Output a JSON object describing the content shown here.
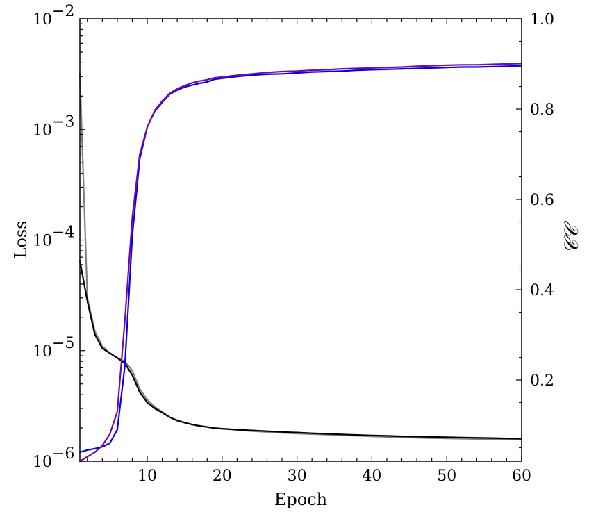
{
  "chart_data": {
    "type": "line",
    "xlabel": "Epoch",
    "ylabel_left": "Loss",
    "ylabel_right": "𝒞𝒞",
    "xlim": [
      1,
      60
    ],
    "ylim_left": [
      1e-06,
      0.01
    ],
    "yscale_left": "log",
    "ylim_right": [
      0.02,
      1.0
    ],
    "x_ticks": [
      10,
      20,
      30,
      40,
      50,
      60
    ],
    "x_tick_labels": [
      "10",
      "20",
      "30",
      "40",
      "50",
      "60"
    ],
    "y_left_ticks": [
      {
        "value": 1e-06,
        "base": "10",
        "exp": "−6"
      },
      {
        "value": 1e-05,
        "base": "10",
        "exp": "−5"
      },
      {
        "value": 0.0001,
        "base": "10",
        "exp": "−4"
      },
      {
        "value": 0.001,
        "base": "10",
        "exp": "−3"
      },
      {
        "value": 0.01,
        "base": "10",
        "exp": "−2"
      }
    ],
    "y_right_ticks": [
      0.2,
      0.4,
      0.6,
      0.8,
      1.0
    ],
    "y_right_tick_labels": [
      "0.2",
      "0.4",
      "0.6",
      "0.8",
      "1.0"
    ],
    "grid": false,
    "series": [
      {
        "axis": "left",
        "color": "#7f7f7f",
        "x": [
          1,
          2,
          3,
          4,
          5,
          6,
          7,
          8,
          9,
          10,
          11,
          12,
          13,
          14,
          15,
          16,
          17,
          18,
          19,
          20,
          22,
          24,
          26,
          28,
          30,
          32,
          34,
          36,
          38,
          40,
          42,
          44,
          46,
          48,
          50,
          52,
          54,
          56,
          58,
          60
        ],
        "y": [
          0.0032,
          3e-05,
          1.5e-05,
          1.1e-05,
          9.5e-06,
          8.6e-06,
          8e-06,
          6.6e-06,
          4.5e-06,
          3.6e-06,
          3.1e-06,
          2.8e-06,
          2.5e-06,
          2.35e-06,
          2.25e-06,
          2.15e-06,
          2.1e-06,
          2.05e-06,
          2e-06,
          1.97e-06,
          1.92e-06,
          1.87e-06,
          1.84e-06,
          1.81e-06,
          1.78e-06,
          1.76e-06,
          1.74e-06,
          1.72e-06,
          1.7e-06,
          1.68e-06,
          1.66e-06,
          1.65e-06,
          1.63e-06,
          1.62e-06,
          1.61e-06,
          1.6e-06,
          1.59e-06,
          1.58e-06,
          1.57e-06,
          1.57e-06
        ]
      },
      {
        "axis": "left",
        "color": "#000000",
        "x": [
          1,
          2,
          3,
          4,
          5,
          6,
          7,
          8,
          9,
          10,
          11,
          12,
          13,
          14,
          15,
          16,
          17,
          18,
          19,
          20,
          22,
          24,
          26,
          28,
          30,
          32,
          34,
          36,
          38,
          40,
          42,
          44,
          46,
          48,
          50,
          52,
          54,
          56,
          58,
          60
        ],
        "y": [
          6.5e-05,
          2.8e-05,
          1.4e-05,
          1.05e-05,
          9.5e-06,
          8.6e-06,
          7.7e-06,
          6e-06,
          4.2e-06,
          3.4e-06,
          3e-06,
          2.75e-06,
          2.5e-06,
          2.33e-06,
          2.23e-06,
          2.15e-06,
          2.08e-06,
          2.04e-06,
          1.99e-06,
          1.97e-06,
          1.93e-06,
          1.9e-06,
          1.87e-06,
          1.84e-06,
          1.82e-06,
          1.79e-06,
          1.77e-06,
          1.75e-06,
          1.73e-06,
          1.71e-06,
          1.7e-06,
          1.68e-06,
          1.67e-06,
          1.66e-06,
          1.65e-06,
          1.64e-06,
          1.63e-06,
          1.62e-06,
          1.61e-06,
          1.6e-06
        ]
      },
      {
        "axis": "right",
        "color": "#0000ee",
        "x": [
          1,
          2,
          3,
          4,
          5,
          6,
          7,
          8,
          9,
          10,
          11,
          12,
          13,
          14,
          15,
          16,
          17,
          18,
          19,
          20,
          22,
          24,
          26,
          28,
          30,
          32,
          34,
          36,
          38,
          40,
          42,
          44,
          46,
          48,
          50,
          52,
          54,
          56,
          58,
          60
        ],
        "y": [
          0.04,
          0.045,
          0.048,
          0.052,
          0.06,
          0.09,
          0.23,
          0.52,
          0.69,
          0.76,
          0.795,
          0.815,
          0.833,
          0.842,
          0.849,
          0.853,
          0.857,
          0.86,
          0.866,
          0.868,
          0.872,
          0.875,
          0.877,
          0.878,
          0.88,
          0.882,
          0.883,
          0.884,
          0.886,
          0.887,
          0.888,
          0.889,
          0.89,
          0.891,
          0.892,
          0.893,
          0.893,
          0.894,
          0.895,
          0.896
        ]
      },
      {
        "axis": "right",
        "color": "#7a0a9e",
        "x": [
          1,
          2,
          3,
          4,
          5,
          6,
          7,
          8,
          9,
          10,
          11,
          12,
          13,
          14,
          15,
          16,
          17,
          18,
          19,
          20,
          22,
          24,
          26,
          28,
          30,
          32,
          34,
          36,
          38,
          40,
          42,
          44,
          46,
          48,
          50,
          52,
          54,
          56,
          58,
          60
        ],
        "y": [
          0.02,
          0.03,
          0.04,
          0.055,
          0.08,
          0.13,
          0.33,
          0.56,
          0.7,
          0.76,
          0.797,
          0.818,
          0.835,
          0.845,
          0.852,
          0.858,
          0.862,
          0.865,
          0.869,
          0.871,
          0.875,
          0.878,
          0.881,
          0.883,
          0.884,
          0.886,
          0.887,
          0.889,
          0.89,
          0.891,
          0.892,
          0.893,
          0.895,
          0.896,
          0.897,
          0.898,
          0.898,
          0.899,
          0.9,
          0.901
        ]
      }
    ]
  }
}
